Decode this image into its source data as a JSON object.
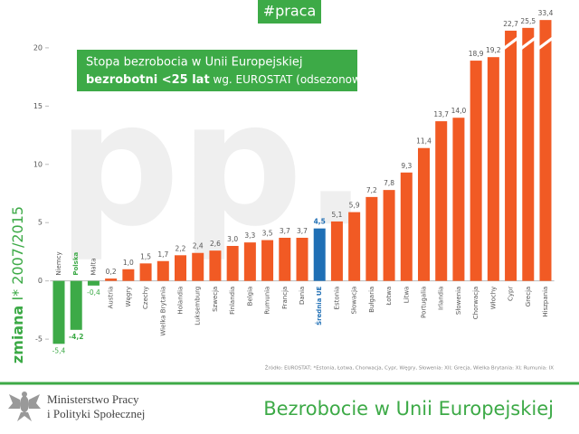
{
  "chart_data": {
    "type": "bar",
    "header": "#praca",
    "title": "Stopa bezrobocia w Unii Europejskiej",
    "subtitle_bold": "bezrobotni <25 lat",
    "subtitle": "wg. EUROSTAT (odsezonowana)",
    "y_label_bold": "zmiana",
    "y_label": "I* 2007/2015",
    "watermark": "pp.",
    "source": "Źródło: EUROSTAT; *Estonia, Łotwa, Chorwacja, Cypr, Węgry, Słowenia: XII; Grecja, Wielka Brytania: XI; Rumunia: IX",
    "footer_org": [
      "Ministerstwo Pracy",
      "i Polityki Społecznej"
    ],
    "footer_title": "Bezrobocie w Unii Europejskiej",
    "categories": [
      "Niemcy",
      "Polska",
      "Malta",
      "Austria",
      "Węgry",
      "Czechy",
      "Wielka Brytania",
      "Holandia",
      "Luksemburg",
      "Szwecja",
      "Finlandia",
      "Belgia",
      "Rumunia",
      "Francja",
      "Dania",
      "Średnia UE",
      "Estonia",
      "Słowacja",
      "Bułgaria",
      "Łotwa",
      "Litwa",
      "Portugalia",
      "Irlandia",
      "Słowenia",
      "Chorwacja",
      "Włochy",
      "Cypr",
      "Grecja",
      "Hiszpania"
    ],
    "values": [
      -5.4,
      -4.2,
      -0.4,
      0.2,
      1.0,
      1.5,
      1.7,
      2.2,
      2.4,
      2.6,
      3.0,
      3.3,
      3.5,
      3.7,
      3.7,
      4.5,
      5.1,
      5.9,
      7.2,
      7.8,
      9.3,
      11.4,
      13.7,
      14.0,
      18.9,
      19.2,
      22.7,
      25.5,
      33.4
    ],
    "value_labels": [
      "-5,4",
      "-4,2",
      "-0,4",
      "0,2",
      "1,0",
      "1,5",
      "1,7",
      "2,2",
      "2,4",
      "2,6",
      "3,0",
      "3,3",
      "3,5",
      "3,7",
      "3,7",
      "4,5",
      "5,1",
      "5,9",
      "7,2",
      "7,8",
      "9,3",
      "11,4",
      "13,7",
      "14,0",
      "18,9",
      "19,2",
      "22,7",
      "25,5",
      "33,4"
    ],
    "colors": [
      "#3daa47",
      "#3daa47",
      "#3daa47",
      "#f15a24",
      "#f15a24",
      "#f15a24",
      "#f15a24",
      "#f15a24",
      "#f15a24",
      "#f15a24",
      "#f15a24",
      "#f15a24",
      "#f15a24",
      "#f15a24",
      "#f15a24",
      "#1f6fb5",
      "#f15a24",
      "#f15a24",
      "#f15a24",
      "#f15a24",
      "#f15a24",
      "#f15a24",
      "#f15a24",
      "#f15a24",
      "#f15a24",
      "#f15a24",
      "#f15a24",
      "#f15a24",
      "#f15a24"
    ],
    "ylim": [
      -6,
      21
    ],
    "yticks": [
      -5,
      0,
      5,
      10,
      15,
      20
    ],
    "axis_break": 20
  }
}
